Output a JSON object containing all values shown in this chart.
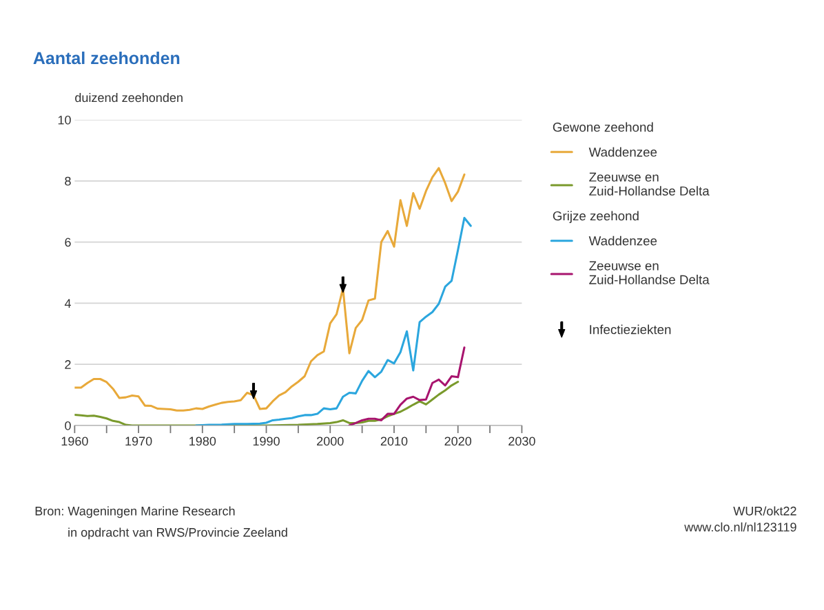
{
  "chart_data": {
    "type": "line",
    "title": "Aantal zeehonden",
    "ylabel": "duizend zeehonden",
    "xlim": [
      1960,
      2030
    ],
    "xticks": [
      1960,
      {
        "value": 1965,
        "label": null
      },
      1970,
      {
        "value": 1975,
        "label": null
      },
      1980,
      {
        "value": 1985,
        "label": null
      },
      1990,
      {
        "value": 1995,
        "label": null
      },
      2000,
      {
        "value": 2005,
        "label": null
      },
      2010,
      {
        "value": 2015,
        "label": null
      },
      2020,
      {
        "value": 2025,
        "label": null
      },
      2030
    ],
    "ylim": [
      0,
      10
    ],
    "yticks": [
      0,
      2,
      4,
      6,
      8,
      10
    ],
    "grid": "y",
    "legend": "right",
    "series": [
      {
        "name": "Waddenzee",
        "color": "#e8a93a",
        "x": [
          1960,
          1961,
          1962,
          1963,
          1964,
          1965,
          1966,
          1967,
          1968,
          1969,
          1970,
          1971,
          1972,
          1973,
          1974,
          1975,
          1976,
          1977,
          1978,
          1979,
          1980,
          1981,
          1982,
          1983,
          1984,
          1985,
          1986,
          1987,
          1988,
          1989,
          1990,
          1991,
          1992,
          1993,
          1994,
          1995,
          1996,
          1997,
          1998,
          1999,
          2000,
          2001,
          2002,
          2003,
          2004,
          2005,
          2006,
          2007,
          2008,
          2009,
          2010,
          2011,
          2012,
          2013,
          2014,
          2015,
          2016,
          2017,
          2018,
          2019,
          2020,
          2021
        ],
        "values": [
          1.24,
          1.24,
          1.39,
          1.52,
          1.52,
          1.42,
          1.2,
          0.9,
          0.92,
          0.98,
          0.95,
          0.65,
          0.64,
          0.55,
          0.54,
          0.53,
          0.49,
          0.49,
          0.51,
          0.56,
          0.54,
          0.62,
          0.68,
          0.74,
          0.77,
          0.79,
          0.83,
          1.07,
          0.99,
          0.54,
          0.56,
          0.79,
          0.98,
          1.09,
          1.28,
          1.43,
          1.61,
          2.1,
          2.3,
          2.42,
          3.34,
          3.64,
          4.48,
          2.36,
          3.19,
          3.45,
          4.09,
          4.15,
          6.0,
          6.36,
          5.85,
          7.37,
          6.53,
          7.6,
          7.09,
          7.67,
          8.12,
          8.42,
          7.93,
          7.34,
          7.65,
          8.21
        ]
      },
      {
        "name": "Zeeuwse en\nZuid-Hollandse Delta",
        "color": "#7a9a2c",
        "x": [
          1960,
          1961,
          1962,
          1963,
          1964,
          1965,
          1966,
          1967,
          1968,
          1969,
          1975,
          1980,
          1985,
          1990,
          1995,
          1998,
          2000,
          2001,
          2002,
          2003,
          2004,
          2005,
          2006,
          2007,
          2008,
          2009,
          2010,
          2011,
          2012,
          2013,
          2014,
          2015,
          2016,
          2017,
          2018,
          2019,
          2020
        ],
        "values": [
          0.35,
          0.33,
          0.31,
          0.32,
          0.28,
          0.23,
          0.15,
          0.11,
          0.02,
          0.0,
          0.0,
          0.0,
          0.0,
          0.0,
          0.02,
          0.05,
          0.08,
          0.11,
          0.17,
          0.08,
          0.08,
          0.1,
          0.15,
          0.15,
          0.2,
          0.3,
          0.38,
          0.45,
          0.56,
          0.68,
          0.79,
          0.69,
          0.85,
          1.01,
          1.15,
          1.31,
          1.43
        ]
      },
      {
        "name": "Waddenzee",
        "color": "#2ba6de",
        "x": [
          1979,
          1981,
          1983,
          1985,
          1987,
          1989,
          1990,
          1991,
          1992,
          1993,
          1994,
          1995,
          1996,
          1997,
          1998,
          1999,
          2000,
          2001,
          2002,
          2003,
          2004,
          2005,
          2006,
          2007,
          2008,
          2009,
          2010,
          2011,
          2012,
          2013,
          2014,
          2015,
          2016,
          2017,
          2018,
          2019,
          2020,
          2021,
          2022
        ],
        "values": [
          0.0,
          0.02,
          0.03,
          0.05,
          0.05,
          0.06,
          0.09,
          0.17,
          0.19,
          0.22,
          0.24,
          0.3,
          0.34,
          0.34,
          0.38,
          0.56,
          0.53,
          0.56,
          0.94,
          1.07,
          1.05,
          1.46,
          1.78,
          1.58,
          1.76,
          2.14,
          2.03,
          2.4,
          3.08,
          1.8,
          3.38,
          3.56,
          3.71,
          3.98,
          4.54,
          4.73,
          5.74,
          6.79,
          6.53
        ]
      },
      {
        "name": "Zeeuwse en\nZuid-Hollandse Delta",
        "color": "#a8146e",
        "x": [
          2003,
          2004,
          2005,
          2006,
          2007,
          2008,
          2009,
          2010,
          2011,
          2012,
          2013,
          2014,
          2015,
          2016,
          2017,
          2018,
          2019,
          2020,
          2021
        ],
        "values": [
          0.0,
          0.08,
          0.17,
          0.22,
          0.22,
          0.17,
          0.38,
          0.38,
          0.68,
          0.88,
          0.94,
          0.83,
          0.85,
          1.39,
          1.5,
          1.31,
          1.61,
          1.58,
          2.55
        ]
      },
      {
        "type": "scatter",
        "name": "Infectieziekten",
        "color": "#000000",
        "x": [
          1988,
          2002
        ],
        "values": [
          1.13,
          4.61
        ]
      }
    ],
    "annotations": [
      "Gewone zeehond",
      "Grijze zeehond",
      "Bron: Wageningen Marine Research",
      "in opdracht van RWS/Provincie Zeeland",
      "WUR/okt22\nwww.clo.nl/nl123119"
    ]
  }
}
